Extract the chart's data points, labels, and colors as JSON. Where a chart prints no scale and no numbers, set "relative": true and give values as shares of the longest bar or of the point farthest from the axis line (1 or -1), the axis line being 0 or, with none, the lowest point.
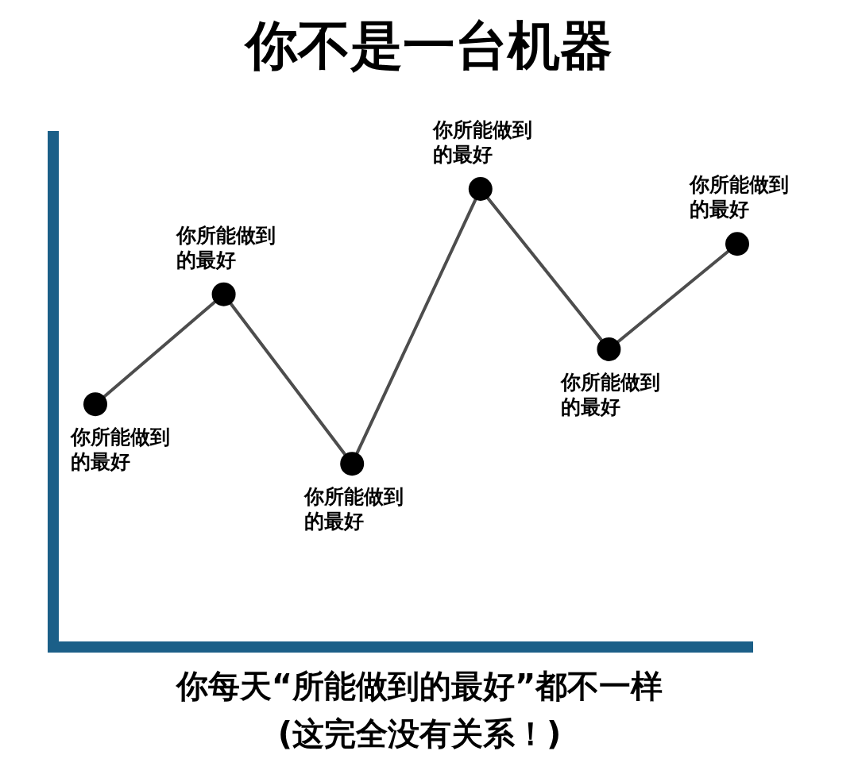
{
  "chart_data": {
    "type": "line",
    "title": "你不是一台机器",
    "xlabel": "你每天“所能做到的最好”都不一样\n(这完全没有关系！)",
    "categories": [
      null,
      null,
      null,
      null,
      null,
      null
    ],
    "relative": true,
    "marker": "circle",
    "series": [
      {
        "color": "#4d4d4d",
        "colors": [
          "#000000",
          "#000000",
          "#000000",
          "#000000",
          "#000000",
          "#000000"
        ],
        "values": [
          0.53,
          0.77,
          0.4,
          1.0,
          0.65,
          0.88
        ]
      }
    ],
    "annotations": [
      "你所能做到的最好",
      "你所能做到的最好",
      "你所能做到的最好",
      "你所能做到的最好",
      "你所能做到的最好",
      "你所能做到的最好"
    ]
  }
}
